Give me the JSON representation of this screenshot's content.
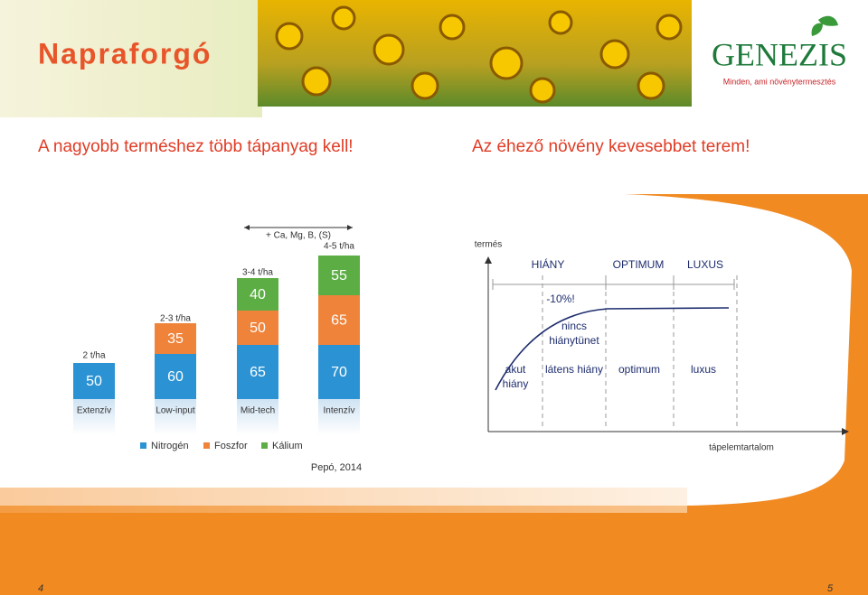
{
  "header": {
    "title": "Napraforgó",
    "logo": "GENEZIS",
    "tagline": "Minden, ami növénytermesztés"
  },
  "headlines": [
    "A nagyobb terméshez több tápanyag kell!",
    "Az éhező növény kevesebbet terem!"
  ],
  "nutrient_chart": {
    "extra": "+ Ca, Mg, B, (S)",
    "levels": [
      "Extenzív",
      "Low-input",
      "Mid-tech",
      "Intenzív"
    ],
    "yields": [
      "2 t/ha",
      "2-3 t/ha",
      "3-4 t/ha",
      "4-5 t/ha"
    ],
    "series": [
      {
        "name": "Nitrogén",
        "color": "#2b93d3",
        "values": [
          50,
          60,
          65,
          70
        ]
      },
      {
        "name": "Foszfor",
        "color": "#f0833a",
        "values": [
          null,
          35,
          50,
          65
        ]
      },
      {
        "name": "Kálium",
        "color": "#5cae44",
        "values": [
          null,
          null,
          40,
          55
        ]
      }
    ],
    "source": "Pepó, 2014"
  },
  "response_diagram": {
    "y_label": "termés",
    "x_label": "tápelemtartalom",
    "zones": [
      "HIÁNY",
      "OPTIMUM",
      "LUXUS"
    ],
    "loss": "-10%!",
    "note": [
      "nincs",
      "hiánytünet"
    ],
    "stages": [
      [
        "akut",
        "hiány"
      ],
      [
        "látens hiány"
      ],
      [
        "optimum"
      ],
      [
        "luxus"
      ]
    ]
  },
  "page_numbers": [
    "4",
    "5"
  ]
}
